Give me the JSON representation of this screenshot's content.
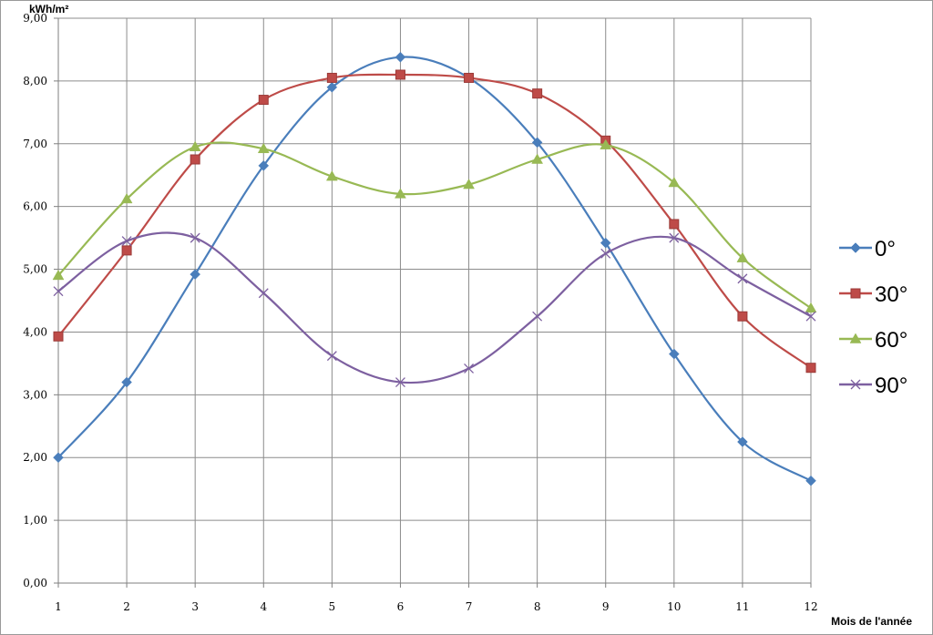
{
  "chart_data": {
    "type": "line",
    "title": "",
    "ylabel": "kWh/m²",
    "xlabel": "Mois de l'année",
    "x": [
      1,
      2,
      3,
      4,
      5,
      6,
      7,
      8,
      9,
      10,
      11,
      12
    ],
    "x_tick_labels": [
      "1",
      "2",
      "3",
      "4",
      "5",
      "6",
      "7",
      "8",
      "9",
      "10",
      "11",
      "12"
    ],
    "ylim": [
      0,
      9
    ],
    "y_tick_labels": [
      "0,00",
      "1,00",
      "2,00",
      "3,00",
      "4,00",
      "5,00",
      "6,00",
      "7,00",
      "8,00",
      "9,00"
    ],
    "grid": true,
    "smooth": true,
    "legend_position": "right",
    "series": [
      {
        "name": "0°",
        "color": "#4a7ebb",
        "marker": "diamond",
        "values": [
          2.0,
          3.2,
          4.92,
          6.65,
          7.9,
          8.38,
          8.05,
          7.02,
          5.42,
          3.65,
          2.25,
          1.63
        ]
      },
      {
        "name": "30°",
        "color": "#be4b48",
        "marker": "square",
        "values": [
          3.93,
          5.3,
          6.75,
          7.7,
          8.05,
          8.1,
          8.05,
          7.8,
          7.05,
          5.72,
          4.25,
          3.43
        ]
      },
      {
        "name": "60°",
        "color": "#98b954",
        "marker": "triangle",
        "values": [
          4.9,
          6.12,
          6.95,
          6.92,
          6.48,
          6.2,
          6.35,
          6.75,
          6.98,
          6.38,
          5.18,
          4.38
        ]
      },
      {
        "name": "90°",
        "color": "#7d60a0",
        "marker": "cross",
        "values": [
          4.65,
          5.45,
          5.5,
          4.62,
          3.62,
          3.2,
          3.42,
          4.25,
          5.25,
          5.5,
          4.85,
          4.25
        ]
      }
    ]
  }
}
